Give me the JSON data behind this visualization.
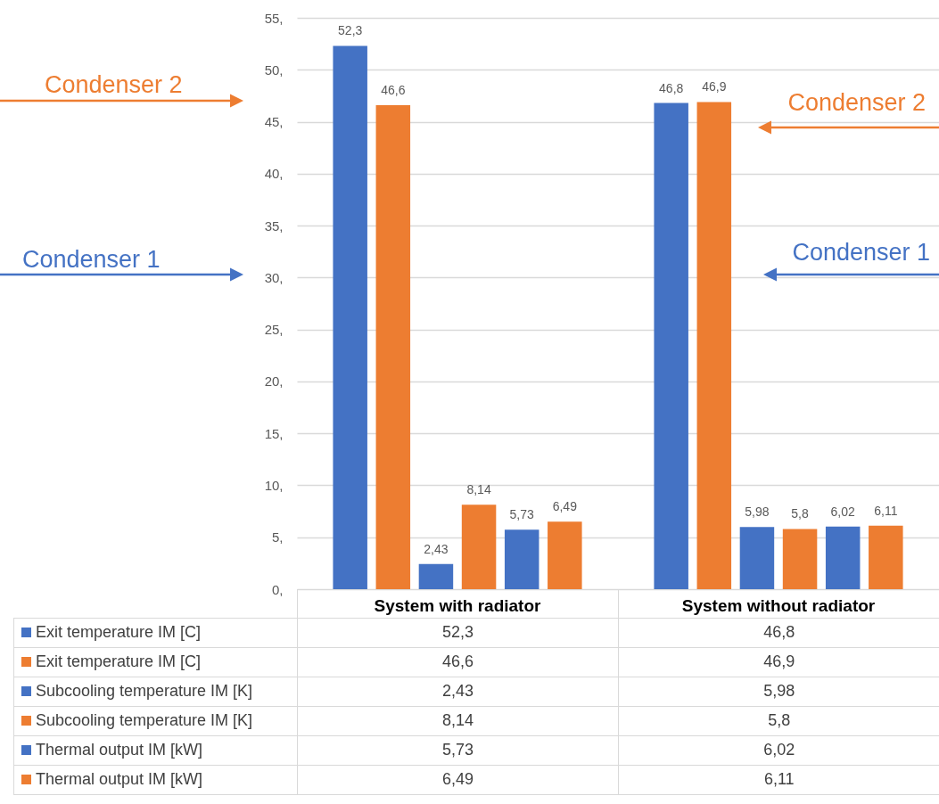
{
  "chart_data": {
    "type": "bar",
    "categories": [
      "System with radiator",
      "System without radiator"
    ],
    "series": [
      {
        "name": "Exit temperature IM [C]",
        "color": "#4472c4",
        "values": [
          52.3,
          46.8
        ],
        "value_labels": [
          "52,3",
          "46,8"
        ]
      },
      {
        "name": "Exit temperature IM [C]",
        "color": "#ed7d31",
        "values": [
          46.6,
          46.9
        ],
        "value_labels": [
          "46,6",
          "46,9"
        ]
      },
      {
        "name": "Subcooling temperature IM [K]",
        "color": "#4472c4",
        "values": [
          2.43,
          5.98
        ],
        "value_labels": [
          "2,43",
          "5,98"
        ]
      },
      {
        "name": "Subcooling temperature IM [K]",
        "color": "#ed7d31",
        "values": [
          8.14,
          5.8
        ],
        "value_labels": [
          "8,14",
          "5,8"
        ]
      },
      {
        "name": "Thermal output IM [kW]",
        "color": "#4472c4",
        "values": [
          5.73,
          6.02
        ],
        "value_labels": [
          "5,73",
          "6,02"
        ]
      },
      {
        "name": "Thermal output IM [kW]",
        "color": "#ed7d31",
        "values": [
          6.49,
          6.11
        ],
        "value_labels": [
          "6,49",
          "6,11"
        ]
      }
    ],
    "ylim": [
      0,
      55
    ],
    "yticks": [
      {
        "value": 0,
        "label": "0,"
      },
      {
        "value": 5,
        "label": "5,"
      },
      {
        "value": 10,
        "label": "10,"
      },
      {
        "value": 15,
        "label": "15,"
      },
      {
        "value": 20,
        "label": "20,"
      },
      {
        "value": 25,
        "label": "25,"
      },
      {
        "value": 30,
        "label": "30,"
      },
      {
        "value": 35,
        "label": "35,"
      },
      {
        "value": 40,
        "label": "40,"
      },
      {
        "value": 45,
        "label": "45,"
      },
      {
        "value": 50,
        "label": "50,"
      },
      {
        "value": 55,
        "label": "55,"
      }
    ],
    "grid": "y",
    "legend": "bottom",
    "annotations": [
      "Condenser 2",
      "Condenser 1",
      "Condenser 2",
      "Condenser 1"
    ]
  }
}
